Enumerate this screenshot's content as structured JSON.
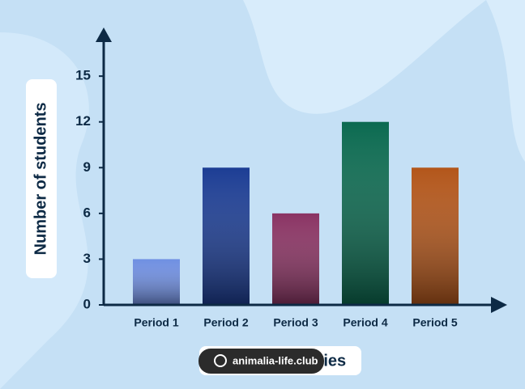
{
  "chart_data": {
    "type": "bar",
    "y_label": "Number of students",
    "x_label": "Class Categories",
    "watermark": "animalia-life.club",
    "categories": [
      "Period 1",
      "Period 2",
      "Period 3",
      "Period 4",
      "Period 5"
    ],
    "values": [
      3,
      9,
      6,
      12,
      9
    ],
    "colors": [
      "#6f8fe2",
      "#1c3d94",
      "#8a3363",
      "#0b6a50",
      "#b3561a"
    ],
    "ylim": [
      0,
      17.5
    ],
    "yticks": [
      0,
      3,
      6,
      9,
      12,
      15
    ]
  }
}
